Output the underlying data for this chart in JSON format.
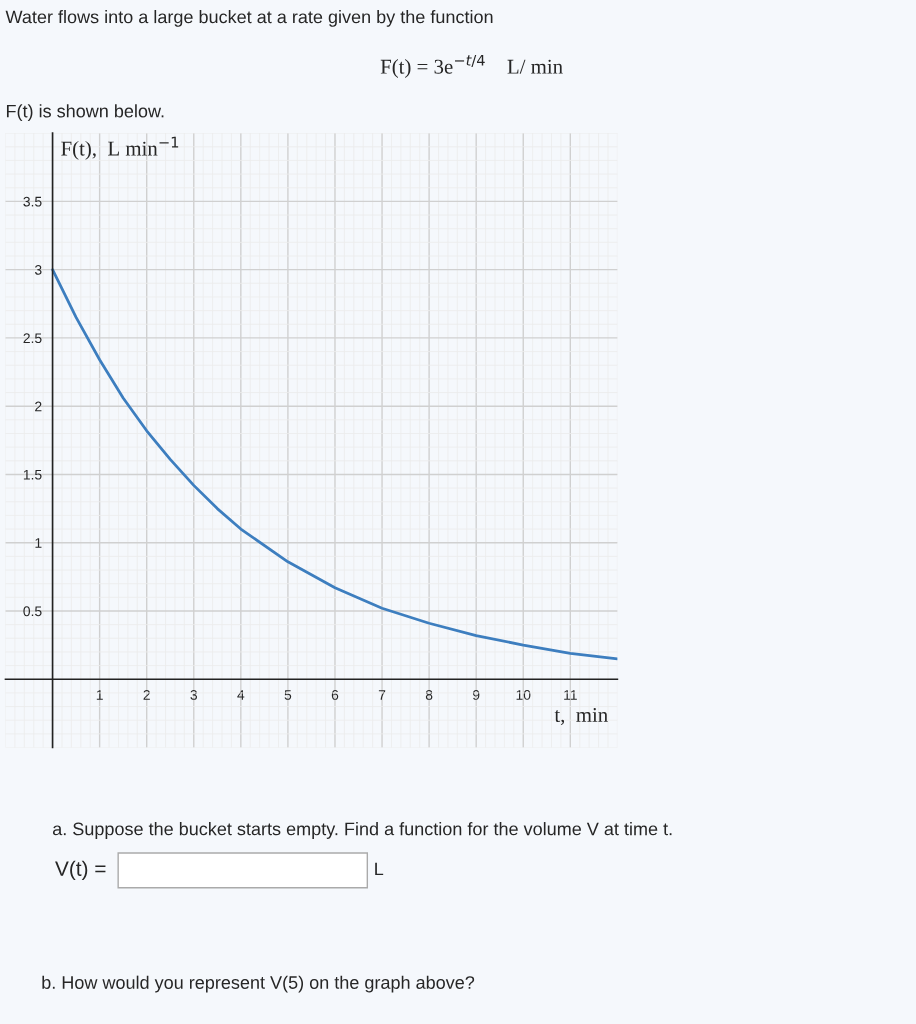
{
  "chart_data": {
    "type": "line",
    "title": "Water flows into a large bucket at a rate given by the function",
    "subtitle": "F(t) = 3e$^{−t/4}$    L/ min",
    "ylabel": "F(t),  L min$^{−1}$",
    "xlabel": "t,  min",
    "annotations": [
      "F(t) is shown below.",
      "a. Suppose the bucket starts empty. Find a function for the volume V at time t.",
      "V(t) =",
      "L",
      "b. How would you represent V(5) on the graph above?"
    ],
    "x": [
      0,
      0.5,
      1,
      1.5,
      2,
      2.5,
      3,
      3.5,
      4,
      5,
      6,
      7,
      8,
      9,
      10,
      11,
      12
    ],
    "series": [
      {
        "color": "#3d7ebf",
        "values": [
          3.0,
          2.65,
          2.34,
          2.06,
          1.82,
          1.61,
          1.42,
          1.25,
          1.1,
          0.86,
          0.67,
          0.52,
          0.41,
          0.32,
          0.25,
          0.19,
          0.15
        ]
      }
    ],
    "xlim": [
      -1,
      12
    ],
    "ylim": [
      -0.5,
      4
    ],
    "xticks": [
      1,
      2,
      3,
      4,
      5,
      6,
      7,
      8,
      9,
      10,
      11
    ],
    "yticks": [
      0.5,
      1,
      1.5,
      2,
      2.5,
      3,
      3.5
    ],
    "grid": true
  }
}
